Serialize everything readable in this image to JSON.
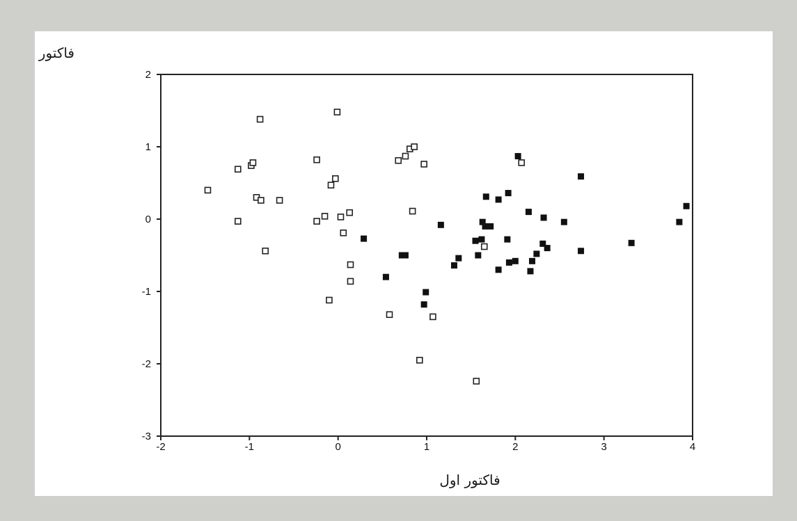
{
  "chart_data": {
    "type": "scatter",
    "title": "",
    "xlabel": "فاکتور اول",
    "ylabel": "فاکتور دوم",
    "xlim": [
      -2,
      4
    ],
    "ylim": [
      -3,
      2
    ],
    "xticks": [
      -2,
      -1,
      0,
      1,
      2,
      3,
      4
    ],
    "yticks": [
      2,
      1,
      0,
      -1,
      -2,
      -3
    ],
    "grid": false,
    "legend": "none",
    "series": [
      {
        "marker": "hollow-square",
        "color": "#222222",
        "points": [
          [
            -1.47,
            0.4
          ],
          [
            -1.13,
            0.69
          ],
          [
            -1.13,
            -0.03
          ],
          [
            -0.98,
            0.74
          ],
          [
            -0.96,
            0.78
          ],
          [
            -0.92,
            0.3
          ],
          [
            -0.88,
            1.38
          ],
          [
            -0.87,
            0.26
          ],
          [
            -0.82,
            -0.44
          ],
          [
            -0.66,
            0.26
          ],
          [
            -0.24,
            0.82
          ],
          [
            -0.24,
            -0.03
          ],
          [
            -0.15,
            0.04
          ],
          [
            -0.1,
            -1.12
          ],
          [
            -0.08,
            0.47
          ],
          [
            -0.03,
            0.56
          ],
          [
            -0.01,
            1.48
          ],
          [
            0.03,
            0.03
          ],
          [
            0.06,
            -0.19
          ],
          [
            0.13,
            0.09
          ],
          [
            0.14,
            -0.63
          ],
          [
            0.14,
            -0.86
          ],
          [
            0.58,
            -1.32
          ],
          [
            0.68,
            0.81
          ],
          [
            0.76,
            0.87
          ],
          [
            0.81,
            0.97
          ],
          [
            0.84,
            0.11
          ],
          [
            0.86,
            1.0
          ],
          [
            0.92,
            -1.95
          ],
          [
            0.97,
            0.76
          ],
          [
            1.07,
            -1.35
          ],
          [
            1.56,
            -2.24
          ],
          [
            1.65,
            -0.38
          ],
          [
            2.07,
            0.78
          ]
        ]
      },
      {
        "marker": "filled-square",
        "color": "#111111",
        "points": [
          [
            0.29,
            -0.27
          ],
          [
            0.54,
            -0.8
          ],
          [
            0.72,
            -0.5
          ],
          [
            0.76,
            -0.5
          ],
          [
            0.97,
            -1.18
          ],
          [
            0.99,
            -1.01
          ],
          [
            1.16,
            -0.08
          ],
          [
            1.31,
            -0.64
          ],
          [
            1.36,
            -0.54
          ],
          [
            1.55,
            -0.3
          ],
          [
            1.58,
            -0.5
          ],
          [
            1.62,
            -0.28
          ],
          [
            1.63,
            -0.04
          ],
          [
            1.66,
            -0.1
          ],
          [
            1.67,
            0.31
          ],
          [
            1.72,
            -0.1
          ],
          [
            1.81,
            0.27
          ],
          [
            1.81,
            -0.7
          ],
          [
            1.91,
            -0.28
          ],
          [
            1.92,
            0.36
          ],
          [
            1.93,
            -0.6
          ],
          [
            2.0,
            -0.58
          ],
          [
            2.03,
            0.87
          ],
          [
            2.15,
            0.1
          ],
          [
            2.17,
            -0.72
          ],
          [
            2.19,
            -0.58
          ],
          [
            2.24,
            -0.48
          ],
          [
            2.31,
            -0.34
          ],
          [
            2.32,
            0.02
          ],
          [
            2.36,
            -0.4
          ],
          [
            2.55,
            -0.04
          ],
          [
            2.74,
            0.59
          ],
          [
            2.74,
            -0.44
          ],
          [
            3.31,
            -0.33
          ],
          [
            3.85,
            -0.04
          ],
          [
            3.93,
            0.18
          ]
        ]
      }
    ]
  }
}
